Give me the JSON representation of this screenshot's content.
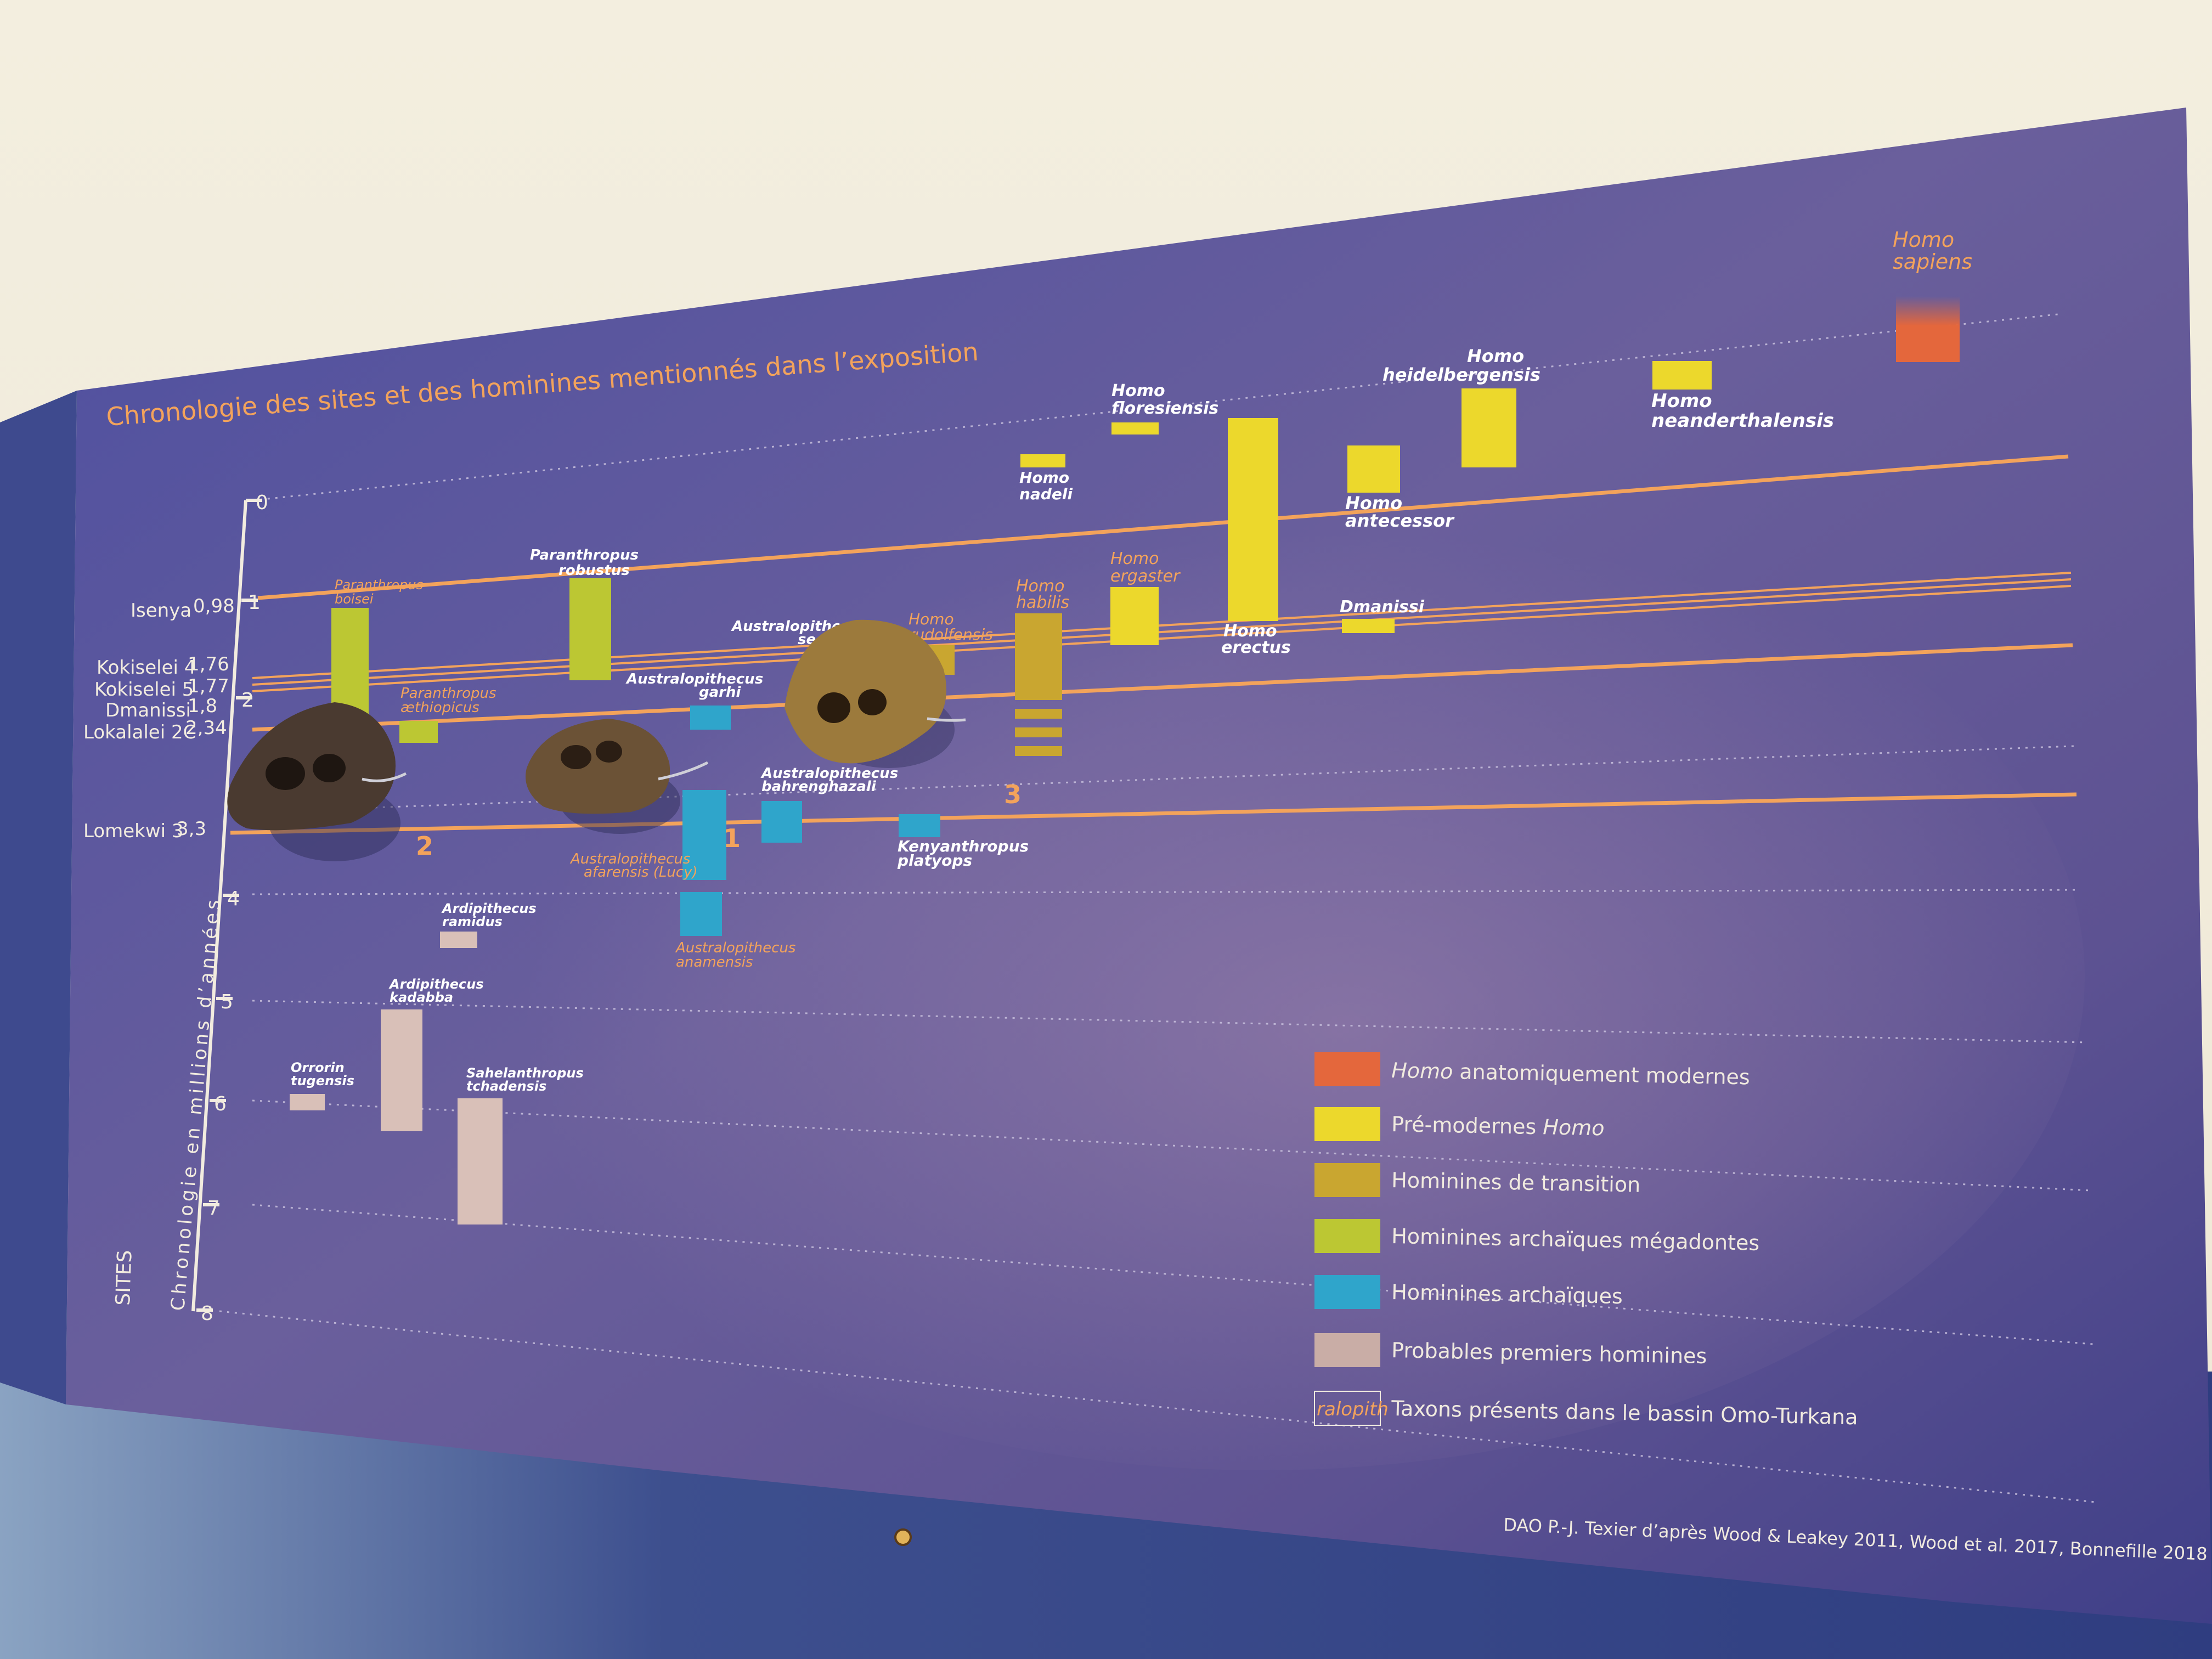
{
  "panel": {
    "title": "Chronologie des sites et des hominines mentionnés dans l’exposition",
    "axis_label": "Chronologie en millions d’années",
    "sites_label": "SITES",
    "credit": "DAO P.-J. Texier d’après Wood & Leakey 2011, Wood et al. 2017, Bonnefille 2018"
  },
  "axis_ticks": [
    "0",
    "1",
    "2",
    "3",
    "4",
    "5",
    "6",
    "7",
    "8"
  ],
  "sites": [
    {
      "name": "Isenya",
      "age": "0,98"
    },
    {
      "name": "Kokiselei 4",
      "age": "1,76"
    },
    {
      "name": "Kokiselei 5",
      "age": "1,77"
    },
    {
      "name": "Dmanissi",
      "age": "1,8"
    },
    {
      "name": "Lokalalei 2C",
      "age": "2,34"
    },
    {
      "name": "Lomekwi 3",
      "age": "3,3"
    }
  ],
  "taxa": [
    {
      "line1": "Homo",
      "line2": "sapiens",
      "category": "moderne"
    },
    {
      "line1": "Homo",
      "line2": "floresiensis",
      "category": "premoderne"
    },
    {
      "line1": "Homo",
      "line2": "heidelbergensis",
      "category": "premoderne"
    },
    {
      "line1": "Homo",
      "line2": "neanderthalensis",
      "category": "premoderne"
    },
    {
      "line1": "Homo",
      "line2": "nadeli",
      "category": "premoderne"
    },
    {
      "line1": "Homo",
      "line2": "antecessor",
      "category": "premoderne"
    },
    {
      "line1": "Homo",
      "line2": "ergaster",
      "category": "premoderne"
    },
    {
      "line1": "Homo",
      "line2": "erectus",
      "category": "premoderne"
    },
    {
      "line1": "Dmanissi",
      "line2": "",
      "category": "premoderne"
    },
    {
      "line1": "Homo",
      "line2": "habilis",
      "category": "transition"
    },
    {
      "line1": "Homo",
      "line2": "rudolfensis",
      "category": "transition"
    },
    {
      "line1": "Paranthropus",
      "line2": "robustus",
      "category": "megadonte"
    },
    {
      "line1": "Paranthropus",
      "line2": "boisei",
      "category": "megadonte"
    },
    {
      "line1": "Paranthropus",
      "line2": "æthiopicus",
      "category": "megadonte"
    },
    {
      "line1": "Australopithecus",
      "line2": "sediba",
      "category": "archaique"
    },
    {
      "line1": "Australopithecus",
      "line2": "garhi",
      "category": "archaique"
    },
    {
      "line1": "Australopithecus",
      "line2": "bahrenghazali",
      "category": "archaique"
    },
    {
      "line1": "Australopithecus",
      "line2": "afarensis (Lucy)",
      "category": "archaique"
    },
    {
      "line1": "Kenyanthropus",
      "line2": "platyops",
      "category": "archaique"
    },
    {
      "line1": "Australopithecus",
      "line2": "anamensis",
      "category": "archaique"
    },
    {
      "line1": "Ardipithecus",
      "line2": "ramidus",
      "category": "premiers"
    },
    {
      "line1": "Ardipithecus",
      "line2": "kadabba",
      "category": "premiers"
    },
    {
      "line1": "Orrorin",
      "line2": "tugensis",
      "category": "premiers"
    },
    {
      "line1": "Sahelanthropus",
      "line2": "tchadensis",
      "category": "premiers"
    }
  ],
  "markers": [
    "2",
    "1",
    "3"
  ],
  "legend": [
    {
      "italic": "Homo",
      "text": " anatomiquement modernes",
      "color": "#e4673c"
    },
    {
      "italic": "",
      "text": "Pré-modernes ",
      "italic_after": "Homo",
      "color": "#ecd82c"
    },
    {
      "italic": "",
      "text": "Hominines de transition",
      "color": "#c9a630"
    },
    {
      "italic": "",
      "text": "Hominines archaïques mégadontes",
      "color": "#bcc733"
    },
    {
      "italic": "",
      "text": "Hominines archaïques",
      "color": "#2fa5cb"
    },
    {
      "italic": "",
      "text": "Probables premiers hominines",
      "color": "#c9ada6"
    },
    {
      "italic": "",
      "text": "Taxons présents dans le bassin Omo-Turkana",
      "box_text": "ralopith",
      "color": "#f3a35b"
    }
  ],
  "colors": {
    "panel": "#4b4a94",
    "moderne": "#e4673c",
    "premoderne": "#ecd82c",
    "transition": "#c9a630",
    "megadonte": "#bcc733",
    "archaique": "#2fa5cb",
    "premiers": "#d9c0b8",
    "accent": "#f3a35b"
  }
}
